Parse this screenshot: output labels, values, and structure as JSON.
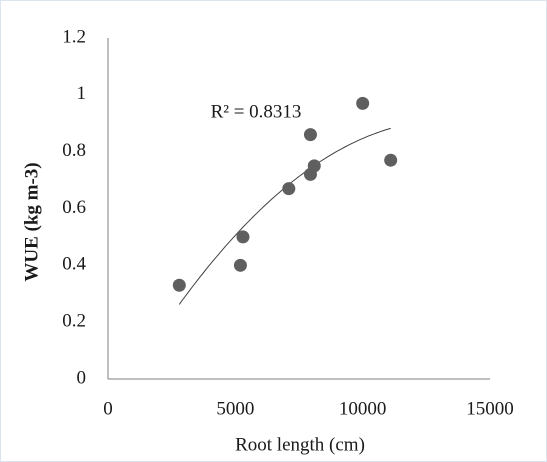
{
  "chart_data": {
    "type": "scatter",
    "x_label": "Root length (cm)",
    "y_label": "WUE (kg m-3)",
    "annotation": "R² = 0.8313",
    "series": [
      {
        "color": "#5f5f5f",
        "x": [
          2800,
          5200,
          5300,
          7100,
          7950,
          7950,
          8100,
          10000,
          11100
        ],
        "values": [
          0.33,
          0.4,
          0.5,
          0.67,
          0.86,
          0.72,
          0.75,
          0.97,
          0.77
        ]
      }
    ],
    "trendline": "poly2",
    "xlim": [
      0,
      15000
    ],
    "xticks": [
      0,
      5000,
      10000,
      15000
    ],
    "ylim": [
      0,
      1.2
    ],
    "yticks": [
      0,
      0.2,
      0.4,
      0.6,
      0.8,
      1,
      1.2
    ]
  }
}
